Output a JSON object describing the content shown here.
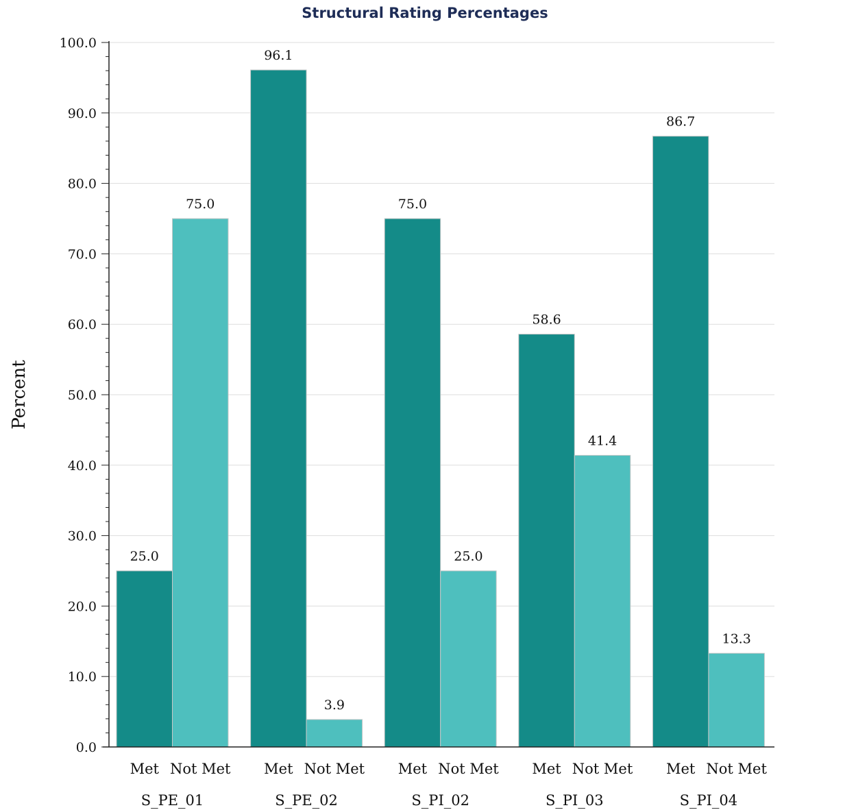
{
  "chart_data": {
    "type": "bar",
    "title": "Structural Rating Percentages",
    "ylabel": "Percent",
    "xlabel": "",
    "ylim": [
      0,
      100
    ],
    "y_tick_labels": [
      "0.0",
      "10.0",
      "20.0",
      "30.0",
      "40.0",
      "50.0",
      "60.0",
      "70.0",
      "80.0",
      "90.0",
      "100.0"
    ],
    "grid": true,
    "categories": [
      "S_PE_01",
      "S_PE_02",
      "S_PI_02",
      "S_PI_03",
      "S_PI_04"
    ],
    "bar_labels": [
      "Met",
      "Not Met"
    ],
    "series": [
      {
        "values": [
          25.0,
          96.1,
          75.0,
          58.6,
          86.7
        ],
        "value_labels": [
          "25.0",
          "96.1",
          "75.0",
          "58.6",
          "86.7"
        ],
        "color": "#148b88"
      },
      {
        "values": [
          75.0,
          3.9,
          25.0,
          41.4,
          13.3
        ],
        "value_labels": [
          "75.0",
          "3.9",
          "25.0",
          "41.4",
          "13.3"
        ],
        "color": "#4ebfbe"
      }
    ]
  }
}
